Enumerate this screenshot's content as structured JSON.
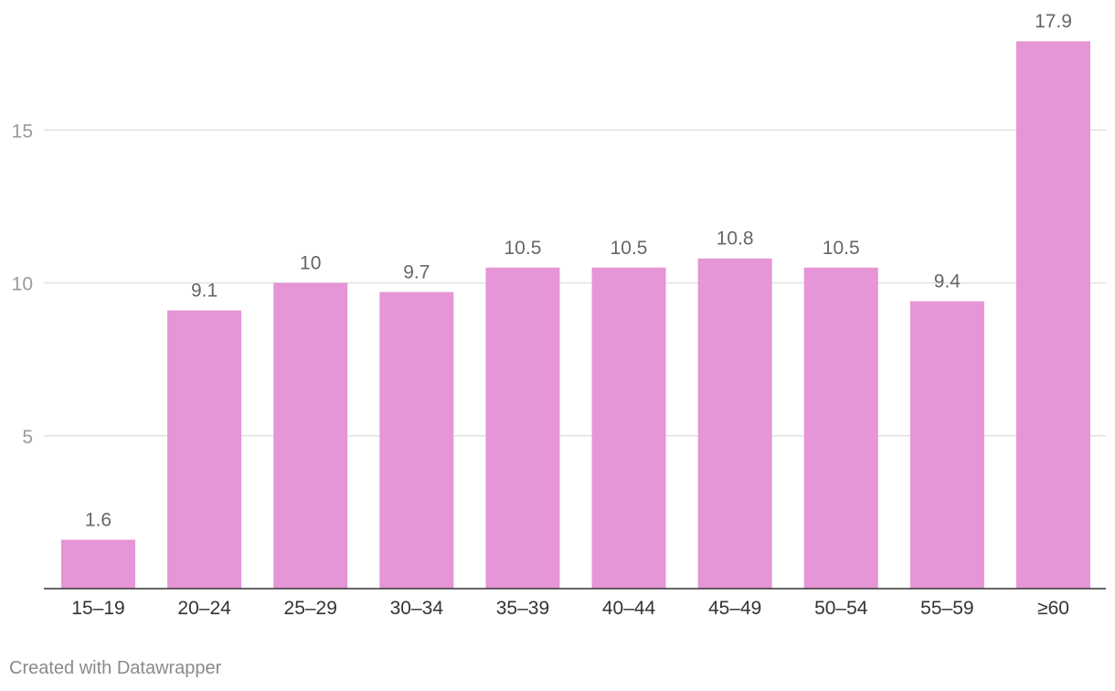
{
  "chart_data": {
    "type": "bar",
    "categories": [
      "15–19",
      "20–24",
      "25–29",
      "30–34",
      "35–39",
      "40–44",
      "45–49",
      "50–54",
      "55–59",
      "≥60"
    ],
    "values": [
      1.6,
      9.1,
      10,
      9.7,
      10.5,
      10.5,
      10.8,
      10.5,
      9.4,
      17.9
    ],
    "value_labels": [
      "1.6",
      "9.1",
      "10",
      "9.7",
      "10.5",
      "10.5",
      "10.8",
      "10.5",
      "9.4",
      "17.9"
    ],
    "y_ticks": [
      5,
      10,
      15
    ],
    "ylim": [
      0,
      18
    ],
    "grid": true,
    "bar_color": "#e695d6"
  },
  "footer": {
    "credit": "Created with Datawrapper"
  }
}
